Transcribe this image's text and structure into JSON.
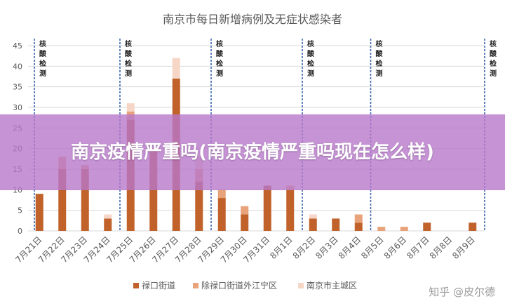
{
  "chart_data": {
    "type": "bar",
    "title": "南京市每日新增病例及无症状感染者",
    "xlabel": "",
    "ylabel": "",
    "ylim": [
      0,
      45
    ],
    "yticks": [
      0,
      5,
      10,
      15,
      20,
      25,
      30,
      35,
      40,
      45
    ],
    "grid": true,
    "stacked": true,
    "legend": "bottom",
    "categories": [
      "7月21日",
      "7月22日",
      "7月23日",
      "7月24日",
      "7月25日",
      "7月26日",
      "7月27日",
      "7月28日",
      "7月29日",
      "7月30日",
      "7月31日",
      "8月1日",
      "8月2日",
      "8月3日",
      "8月4日",
      "8月5日",
      "8月6日",
      "8月7日",
      "8月8日",
      "8月9日"
    ],
    "series": [
      {
        "name": "禄口街道",
        "color": "#c0622a",
        "values": [
          9,
          15,
          15,
          3,
          27,
          19,
          37,
          12,
          8,
          4,
          11,
          10,
          3,
          3,
          2,
          0,
          0,
          2,
          0,
          2
        ]
      },
      {
        "name": "除禄口街道外江宁区",
        "color": "#e8a37a",
        "values": [
          0,
          3,
          1,
          0,
          2,
          1,
          0,
          3,
          2,
          2,
          0,
          1,
          0,
          0,
          2,
          1,
          1,
          0,
          0,
          0
        ]
      },
      {
        "name": "南京市主城区",
        "color": "#f6d6c6",
        "values": [
          0,
          0,
          0,
          1,
          2,
          0,
          5,
          3,
          0,
          0,
          0,
          0,
          1,
          0,
          0,
          0,
          0,
          0,
          0,
          0
        ]
      }
    ],
    "annotation": {
      "label": [
        "核",
        "酸",
        "检",
        "测"
      ],
      "after_categories": [
        "7月20日",
        "7月24日",
        "7月28日",
        "8月1日",
        "8月4日",
        "8月9日"
      ]
    }
  },
  "overlay": {
    "headline": "南京疫情严重吗(南京疫情严重吗现在怎么样)"
  },
  "watermark": "知乎 @皮尔德"
}
